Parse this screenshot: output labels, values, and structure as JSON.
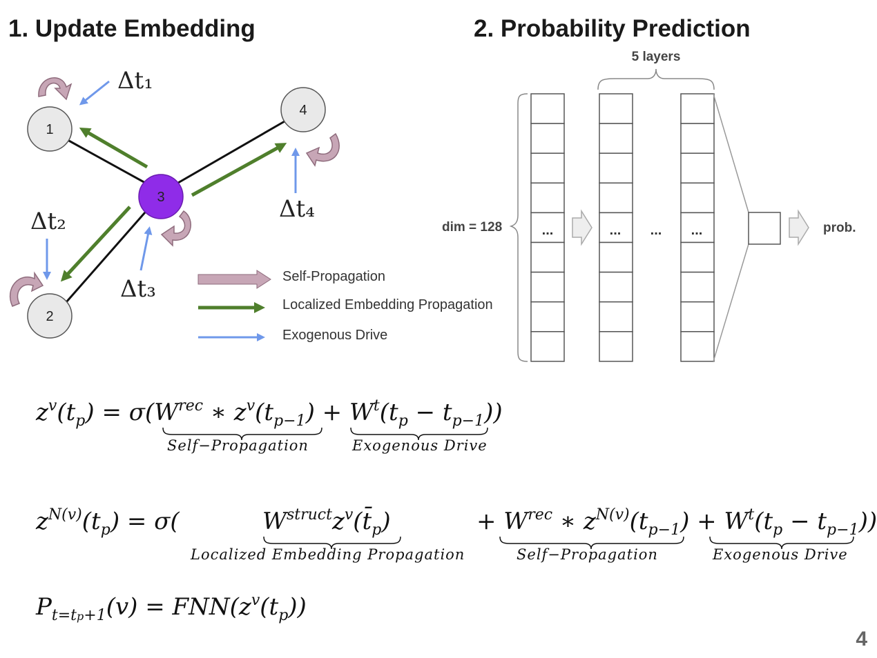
{
  "titles": {
    "left": "1. Update Embedding",
    "right": "2. Probability Prediction"
  },
  "graph": {
    "nodes": [
      "1",
      "2",
      "3",
      "4"
    ],
    "deltas": [
      "Δt₁",
      "Δt₂",
      "Δt₃",
      "Δt₄"
    ]
  },
  "legend": {
    "self": "Self-Propagation",
    "local": "Localized Embedding Propagation",
    "exo": "Exogenous Drive"
  },
  "colors": {
    "self": "#c7a6b6",
    "self_stroke": "#8e6b7c",
    "local": "#4f7f2c",
    "exo": "#6f98ea",
    "node3": "#8f2ce8",
    "node_fill": "#e9e9e9"
  },
  "network": {
    "layers_label": "5 layers",
    "dim_label": "dim = 128",
    "dots": "...",
    "output_label": "prob."
  },
  "equations": {
    "eq1": {
      "lhs": "z",
      "lhs_sup": "v",
      "arg": "(t",
      "arg_sub": "p",
      "assign": ") = σ(",
      "t1": "W",
      "t1_sup": "rec",
      "t1_rest": " ∗ z",
      "t1_sup2": "v",
      "t1_arg": "(t",
      "t1_sub": "p−1",
      "t1_close": ")",
      "plus": " + ",
      "t2": "W",
      "t2_sup": "t",
      "t2_arg": "(t",
      "t2_sub": "p",
      "t2_minus": " − t",
      "t2_sub2": "p−1",
      "t2_close": "))",
      "brace1": "Self−Propagation",
      "brace2": "Exogenous Drive"
    },
    "eq2": {
      "lhs": "z",
      "lhs_sup": "N(v)",
      "arg": "(t",
      "arg_sub": "p",
      "assign": ") = σ(",
      "t0": "W",
      "t0_sup": "struct",
      "t0_rest": "z",
      "t0_sup2": "v",
      "t0_arg": "(t̄",
      "t0_sub": "p",
      "t0_close": ")",
      "plus1": "+ ",
      "t1": "W",
      "t1_sup": "rec",
      "t1_rest": " ∗ z",
      "t1_sup2": "N(v)",
      "t1_arg": "(t",
      "t1_sub": "p−1",
      "t1_close": ")",
      "plus2": " + ",
      "t2": "W",
      "t2_sup": "t",
      "t2_arg": "(t",
      "t2_sub": "p",
      "t2_minus": " − t",
      "t2_sub2": "p−1",
      "t2_close": "))",
      "brace0": "Localized Embedding Propagation",
      "brace1": "Self−Propagation",
      "brace2": "Exogenous Drive"
    },
    "eq3": {
      "lhs": "P",
      "lhs_sub": "t=t",
      "lhs_sub2": "p",
      "lhs_sub3": "+1",
      "arg": "(v) = FNN(z",
      "sup": "v",
      "arg2": "(t",
      "sub": "p",
      "close": "))"
    }
  },
  "page_number": "4"
}
